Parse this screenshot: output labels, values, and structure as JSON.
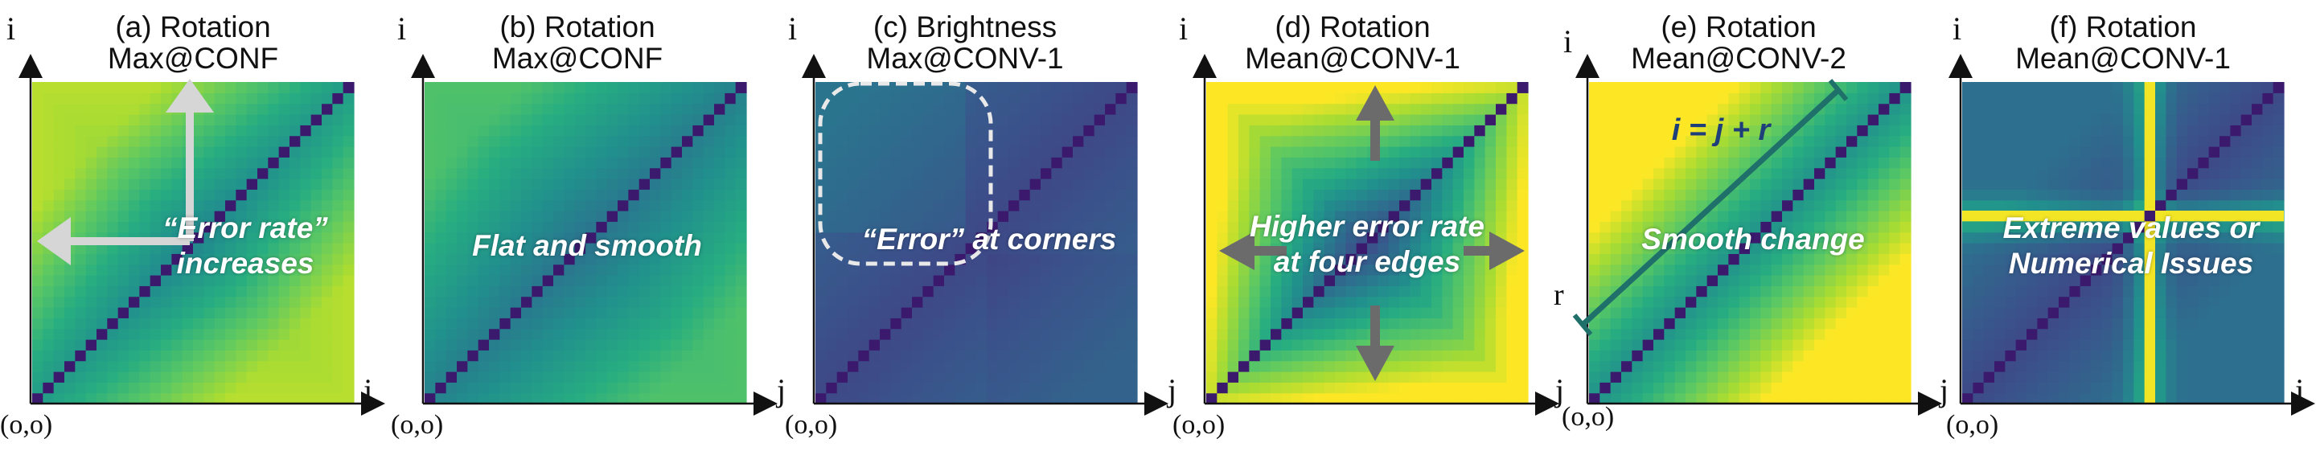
{
  "panels": [
    {
      "title": "(a) Rotation",
      "subtitle": "Max@CONF",
      "annotation": [
        "“Error rate”",
        "increases"
      ],
      "y_axis": "i",
      "x_axis": "j",
      "origin": "(o,o)"
    },
    {
      "title": "(b) Rotation",
      "subtitle": "Max@CONF",
      "annotation": [
        "Flat and smooth"
      ],
      "y_axis": "i",
      "x_axis": "j",
      "origin": "(o,o)"
    },
    {
      "title": "(c) Brightness",
      "subtitle": "Max@CONV-1",
      "annotation": [
        "“Error” at corners"
      ],
      "y_axis": "i",
      "x_axis": "j",
      "origin": "(o,o)"
    },
    {
      "title": "(d) Rotation",
      "subtitle": "Mean@CONV-1",
      "annotation": [
        "Higher error rate",
        "at four edges"
      ],
      "y_axis": "i",
      "x_axis": "j",
      "origin": "(o,o)"
    },
    {
      "title": "(e) Rotation",
      "subtitle": "Mean@CONV-2",
      "annotation": [
        "Smooth change"
      ],
      "y_axis": "i",
      "x_axis": "j",
      "origin": "(o,o)",
      "equation": "i = j + r",
      "r_label": "r"
    },
    {
      "title": "(f) Rotation",
      "subtitle": "Mean@CONV-1",
      "annotation": [
        "Extreme values or",
        "Numerical Issues"
      ],
      "y_axis": "i",
      "x_axis": "j",
      "origin": "(o,o)"
    }
  ],
  "colors": {
    "diagonal": "#3b1a6e",
    "accent_arrow_light": "#d8d8d8",
    "accent_arrow_dark": "#6a6a6a",
    "line_e": "#1f6f6a",
    "equation_text": "#1f3f7a"
  }
}
